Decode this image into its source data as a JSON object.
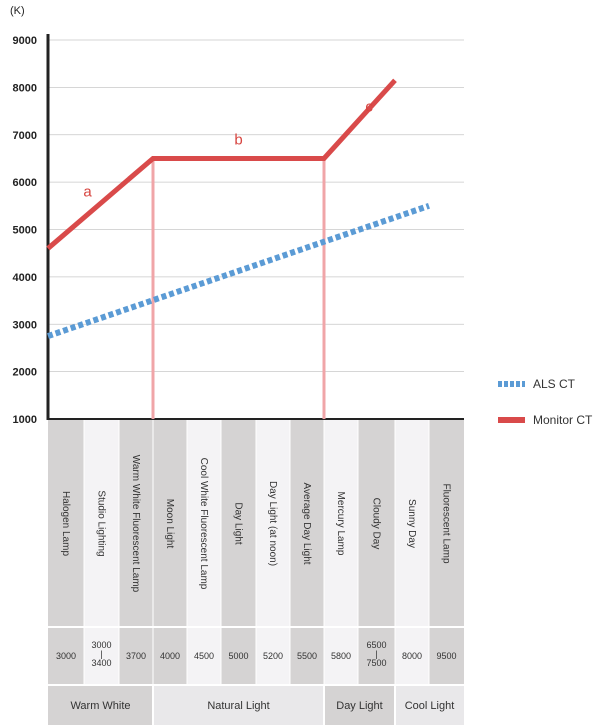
{
  "chart_data": {
    "type": "line",
    "unit": "(K)",
    "ylim": [
      1000,
      9000
    ],
    "yticks": [
      "9000",
      "8000",
      "7000",
      "6000",
      "5000",
      "4000",
      "3000",
      "2000",
      "1000"
    ],
    "grid": true,
    "legend": "right",
    "categories": [
      "Halogen Lamp",
      "Studio Lighting",
      "Warm White Fluorescent Lamp",
      "Moon Light",
      "Cool White Fluorescent Lamp",
      "Day Light",
      "Day Light (at noon)",
      "Average Day Light",
      "Mercury Lamp",
      "Cloudy Day",
      "Sunny Day",
      "Fluorescent Lamp"
    ],
    "temps": [
      "3000",
      "3000\n|\n3400",
      "3700",
      "4000",
      "4500",
      "5000",
      "5200",
      "5500",
      "5800",
      "6500\n|\n7500",
      "8000",
      "9500"
    ],
    "groups": [
      {
        "label": "Warm White",
        "start": 0,
        "end": 2
      },
      {
        "label": "Natural Light",
        "start": 3,
        "end": 7
      },
      {
        "label": "Day Light",
        "start": 8,
        "end": 9
      },
      {
        "label": "Cool Light",
        "start": 10,
        "end": 11
      }
    ],
    "series": [
      {
        "name": "ALS CT",
        "color": "#5b9bd5",
        "style": "dotted",
        "points": [
          [
            0,
            2750
          ],
          [
            11,
            5500
          ]
        ]
      },
      {
        "name": "Monitor CT",
        "color": "#d94a4a",
        "style": "solid",
        "points": [
          [
            0,
            4600
          ],
          [
            3,
            6500
          ],
          [
            8,
            6500
          ],
          [
            10,
            8150
          ]
        ]
      }
    ],
    "segments": [
      {
        "label": "a",
        "x": 1.1,
        "y": 5800
      },
      {
        "label": "b",
        "x": 5.5,
        "y": 6900
      },
      {
        "label": "c",
        "x": 9.3,
        "y": 7600
      }
    ],
    "markers": [
      3,
      8
    ],
    "colors": {
      "shade": "#d5d3d3",
      "light": "#f4f3f5",
      "marker": "#f0a5a8",
      "axis": "#222222"
    }
  }
}
